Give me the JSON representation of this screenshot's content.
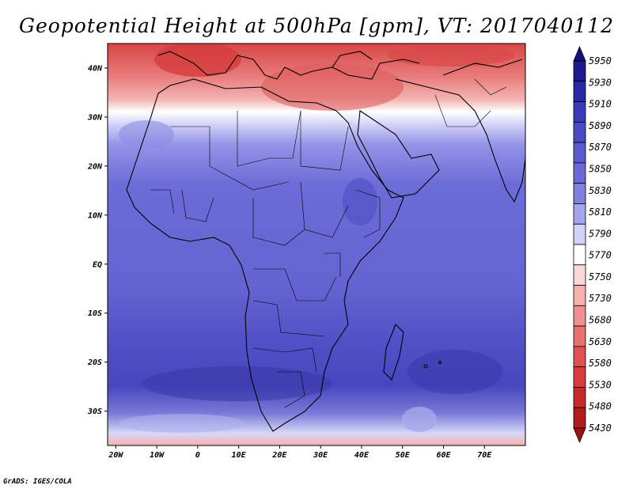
{
  "title": "Geopotential Height at 500hPa [gpm], VT: 2017040112",
  "credit": "GrADS: IGES/COLA",
  "axes": {
    "lat_labels": [
      "40N",
      "30N",
      "20N",
      "10N",
      "EQ",
      "10S",
      "20S",
      "30S"
    ],
    "lat_values": [
      40,
      30,
      20,
      10,
      0,
      -10,
      -20,
      -30
    ],
    "lon_labels": [
      "20W",
      "10W",
      "0",
      "10E",
      "20E",
      "30E",
      "40E",
      "50E",
      "60E",
      "70E"
    ],
    "lon_values": [
      -20,
      -10,
      0,
      10,
      20,
      30,
      40,
      50,
      60,
      70
    ],
    "lon_range": [
      -22,
      80
    ],
    "lat_range": [
      -37,
      45
    ]
  },
  "colorbar": {
    "labels": [
      "5950",
      "5930",
      "5910",
      "5890",
      "5870",
      "5850",
      "5830",
      "5810",
      "5790",
      "5770",
      "5750",
      "5730",
      "5680",
      "5630",
      "5580",
      "5530",
      "5480",
      "5430"
    ],
    "colors": [
      "#1a1a8c",
      "#2929a6",
      "#3a3ab8",
      "#4a4ac4",
      "#5a5acf",
      "#6a6ad7",
      "#8080e0",
      "#a5a5ee",
      "#d2d2f8",
      "#ffffff",
      "#fbd6d6",
      "#f5b0b0",
      "#ef9090",
      "#e87070",
      "#e05252",
      "#d83c3c",
      "#c82828",
      "#b01c1c"
    ]
  }
}
